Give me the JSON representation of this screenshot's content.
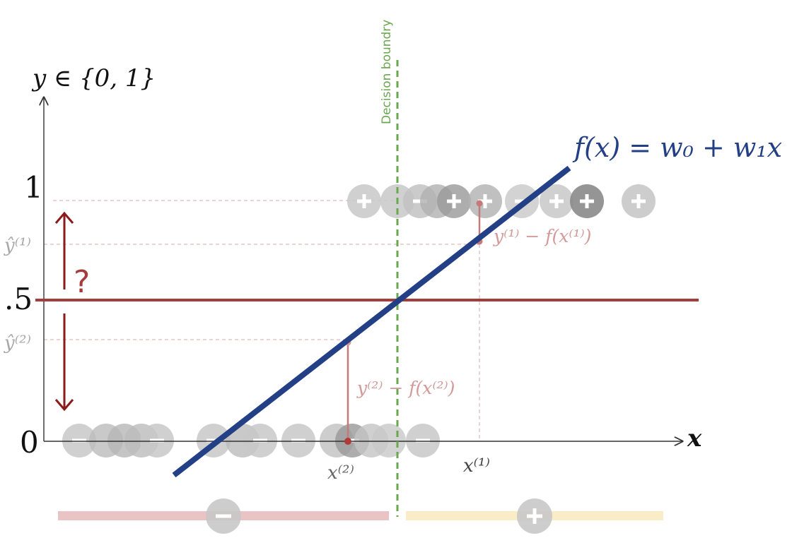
{
  "axes": {
    "y_label": "y ∈ {0, 1}",
    "x_label": "x",
    "tick_1": "1",
    "tick_half": ".5",
    "tick_0": "0"
  },
  "labels": {
    "decision_boundary": "Decision boundry",
    "model": "f(x) = w₀ + w₁x",
    "yhat1": "ŷ⁽¹⁾",
    "yhat2": "ŷ⁽²⁾",
    "residual1": "y⁽¹⁾ − f(x⁽¹⁾)",
    "residual2": "y⁽²⁾ − f(x⁽²⁾)",
    "x1": "x⁽¹⁾",
    "x2": "x⁽²⁾",
    "question": "?"
  },
  "colors": {
    "model_line": "#233f85",
    "threshold": "#a43c3c",
    "boundary": "#6aa84f",
    "arrow": "#8b1a1a",
    "residual": "#c98c8c",
    "negative_band": "#eac4c4",
    "positive_band": "#f9ecc6",
    "marker_light": "#c8c8c8",
    "marker_dark": "#8a8a8a"
  },
  "icons": {
    "positive": "plus-circle-icon",
    "negative": "minus-circle-icon"
  }
}
